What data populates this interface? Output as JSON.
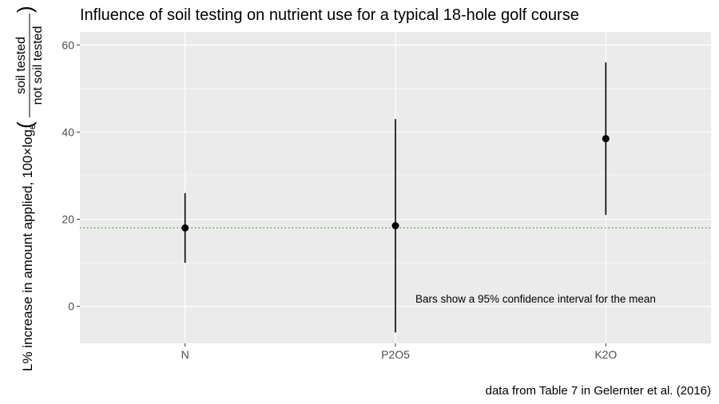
{
  "chart_data": {
    "type": "scatter",
    "title": "Influence of soil testing on nutrient use for a typical 18-hole golf course",
    "caption": "data from Table 7 in Gelernter et al. (2016)",
    "ylabel": {
      "prefix": "L% increase in amount applied, 100×log",
      "subscript": "e",
      "numerator": "soil tested",
      "denominator": "not soil tested"
    },
    "annotation": "Bars show a 95% confidence interval for the mean",
    "categories": [
      "N",
      "P2O5",
      "K2O"
    ],
    "points": [
      {
        "x": "N",
        "y": 18,
        "lower": 10,
        "upper": 26
      },
      {
        "x": "P2O5",
        "y": 18.5,
        "lower": -6,
        "upper": 43
      },
      {
        "x": "K2O",
        "y": 38.5,
        "lower": 21,
        "upper": 56
      }
    ],
    "reference_line": {
      "y": 18,
      "style": "dotted",
      "color": "#2e8b2e"
    },
    "ylim": [
      -8.5,
      63
    ],
    "yticks": [
      0,
      20,
      40,
      60
    ],
    "ytick_labels": [
      "0",
      "20",
      "40",
      "60"
    ],
    "grid": true,
    "panel_color": "#ebebeb"
  }
}
